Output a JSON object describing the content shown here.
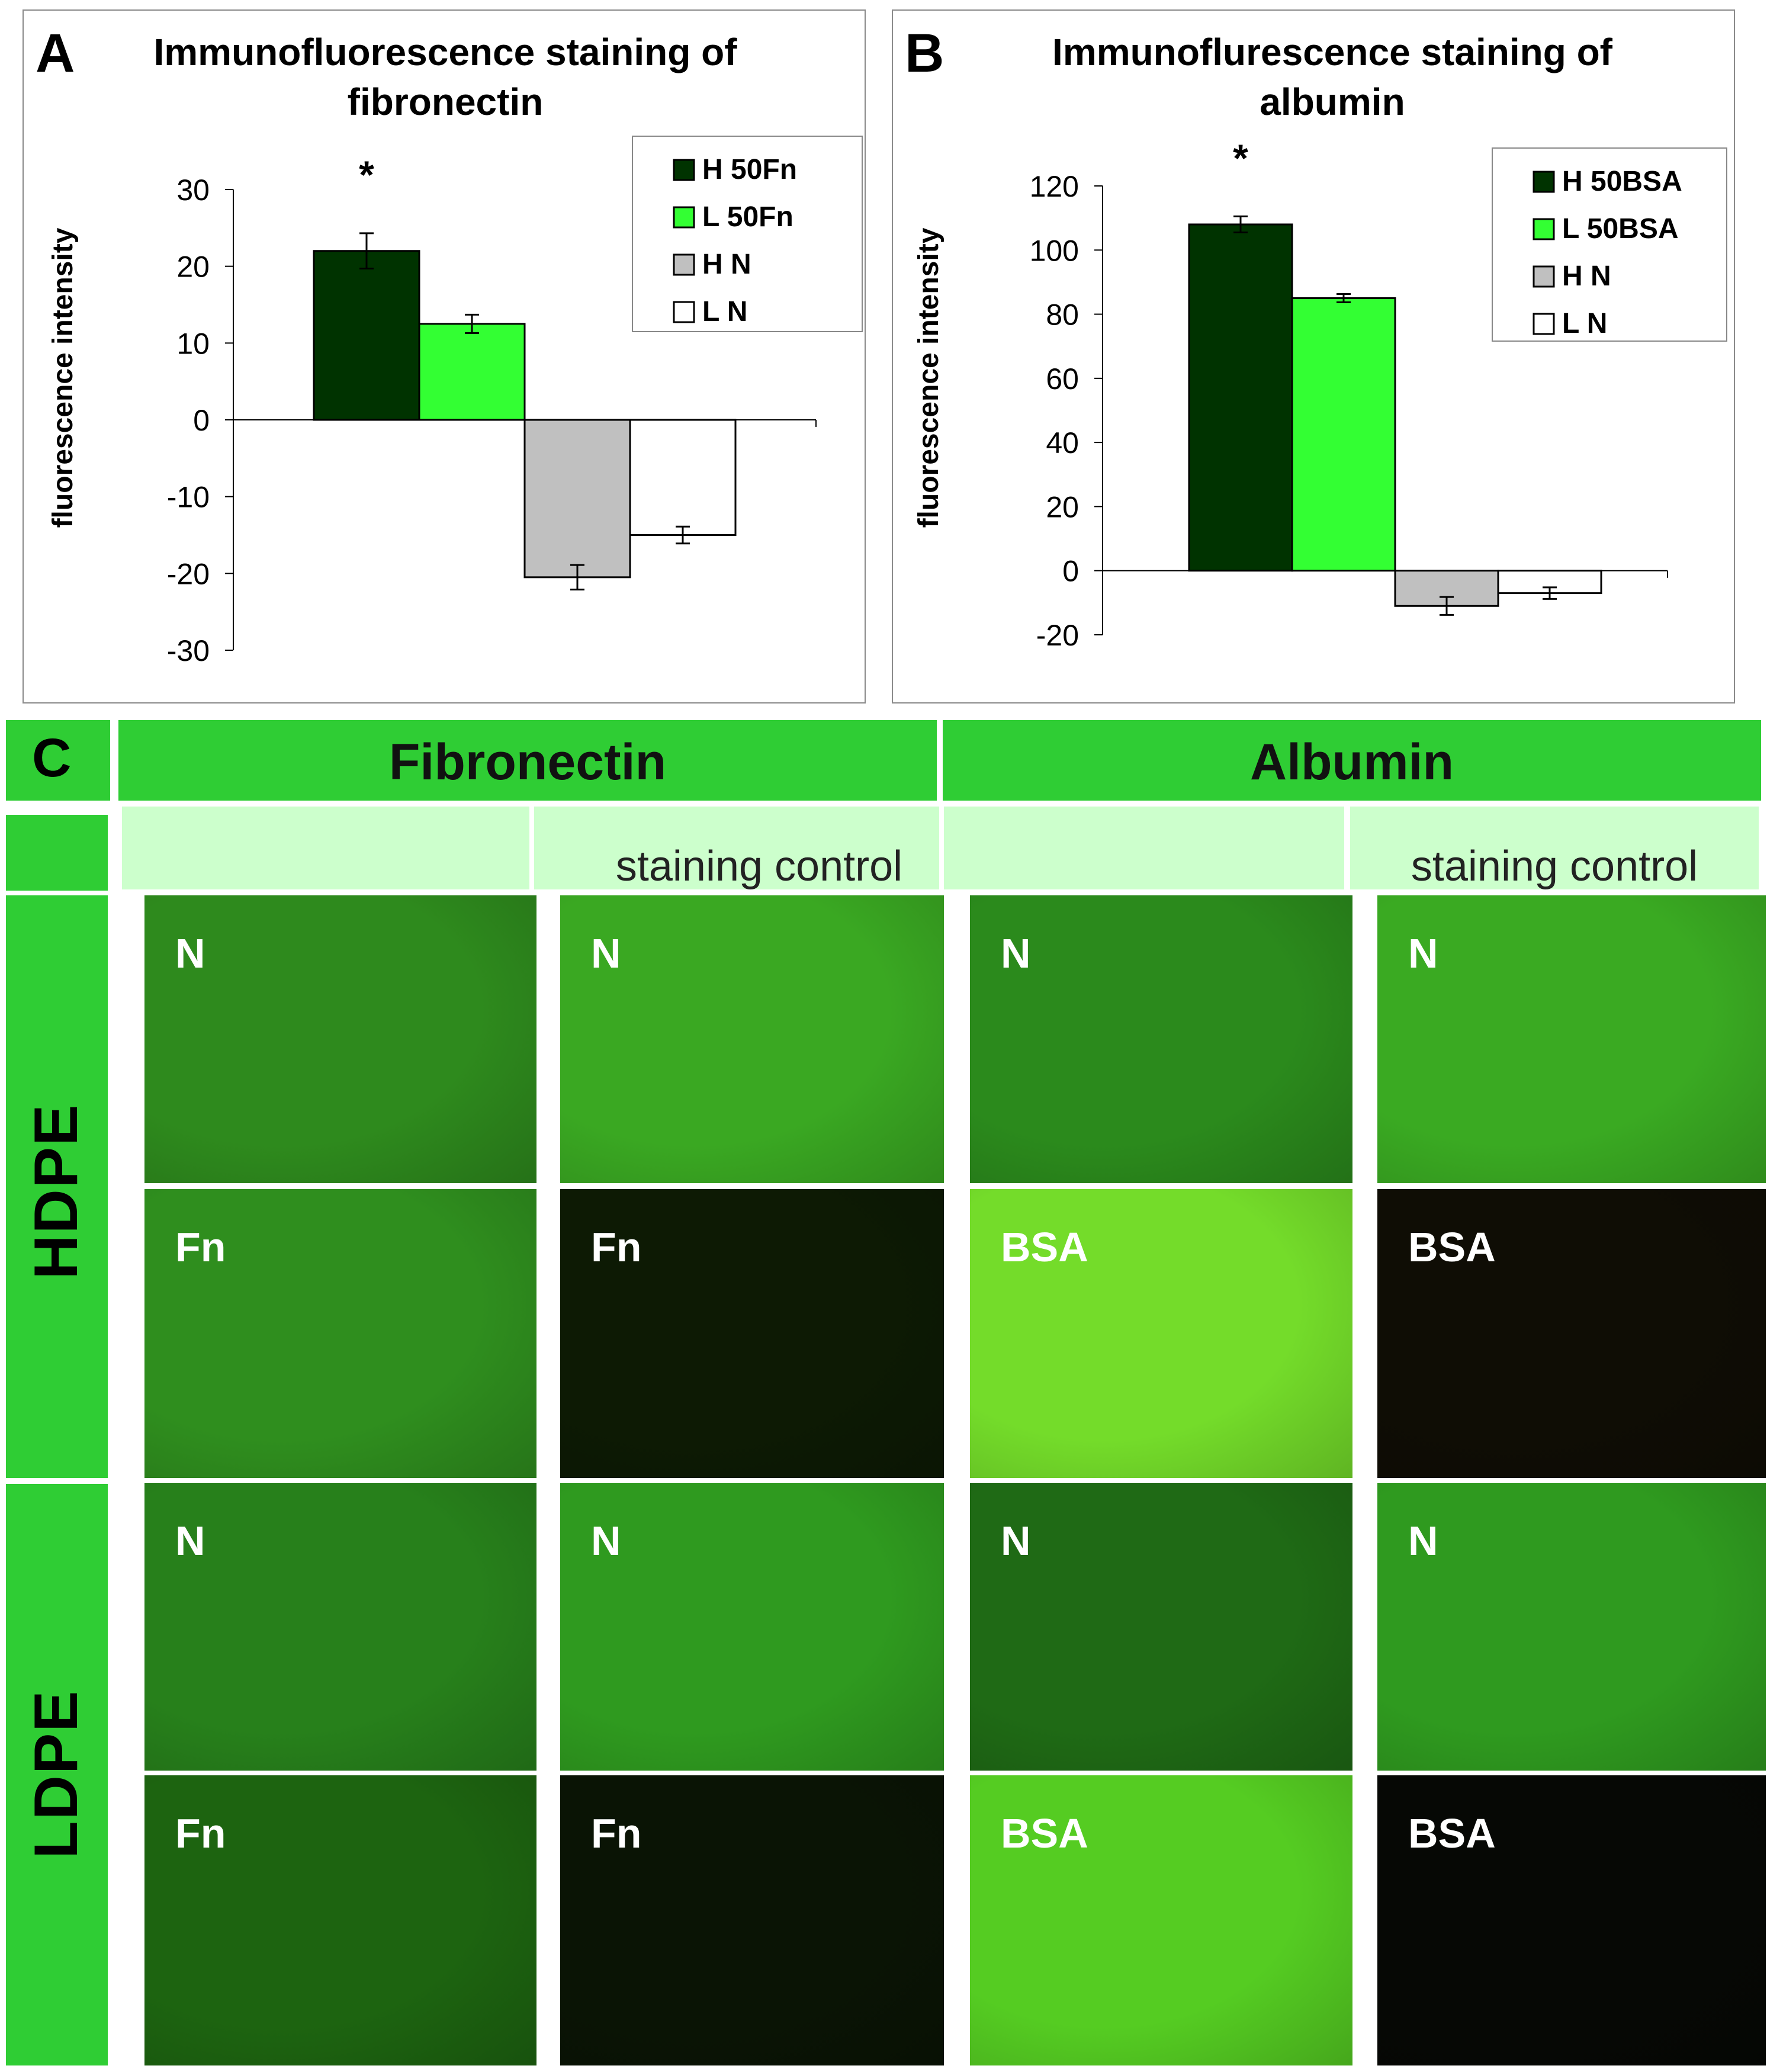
{
  "panelA": {
    "letter": "A",
    "chart_data": {
      "type": "bar",
      "title": "Immunofluorescence staining of fibronectin",
      "title_lines": [
        "Immunofluorescence staining of",
        "fibronectin"
      ],
      "ylabel": "fluorescence intensity",
      "xlabel": "",
      "ylim": [
        -30,
        30
      ],
      "yticks": [
        30,
        20,
        10,
        0,
        -10,
        -20,
        -30
      ],
      "series": [
        {
          "name": "H 50Fn",
          "value": 22,
          "error": 2.3,
          "color": "#003300"
        },
        {
          "name": "L 50Fn",
          "value": 12.5,
          "error": 1.2,
          "color": "#33ff33"
        },
        {
          "name": "H N",
          "value": -20.5,
          "error": 1.6,
          "color": "#c0c0c0"
        },
        {
          "name": "L N",
          "value": -15,
          "error": 1.1,
          "color": "#ffffff"
        }
      ],
      "annotations": [
        "*"
      ],
      "legend": "top-right"
    }
  },
  "panelB": {
    "letter": "B",
    "chart_data": {
      "type": "bar",
      "title": "Immunoflurescence staining of albumin",
      "title_lines": [
        "Immunoflurescence staining of",
        "albumin"
      ],
      "ylabel": "fluorescence intensity",
      "xlabel": "",
      "ylim": [
        -20,
        120
      ],
      "yticks": [
        120,
        100,
        80,
        60,
        40,
        20,
        0,
        -20
      ],
      "series": [
        {
          "name": "H 50BSA",
          "value": 108,
          "error": 2.5,
          "color": "#003300"
        },
        {
          "name": "L 50BSA",
          "value": 85,
          "error": 1.3,
          "color": "#33ff33"
        },
        {
          "name": "H N",
          "value": -11,
          "error": 2.8,
          "color": "#c0c0c0"
        },
        {
          "name": "L N",
          "value": -7,
          "error": 1.8,
          "color": "#ffffff"
        }
      ],
      "annotations": [
        "*"
      ],
      "legend": "top-right"
    }
  },
  "panelC": {
    "letter": "C",
    "headers": [
      "Fibronectin",
      "Albumin"
    ],
    "subheaders": [
      "",
      "staining control",
      "",
      "staining control"
    ],
    "rows": [
      {
        "group": "HDPE",
        "labels": [
          "N",
          "N",
          "N",
          "N"
        ]
      },
      {
        "group": "HDPE",
        "labels": [
          "Fn",
          "Fn",
          "BSA",
          "BSA"
        ]
      },
      {
        "group": "LDPE",
        "labels": [
          "N",
          "N",
          "N",
          "N"
        ]
      },
      {
        "group": "LDPE",
        "labels": [
          "Fn",
          "Fn",
          "BSA",
          "BSA"
        ]
      }
    ],
    "groups": [
      "HDPE",
      "LDPE"
    ],
    "colors": {
      "header": "#2fcd34",
      "subheader": "#ccffcc",
      "tile_colors": [
        [
          "#2e8a1d",
          "#3aa822",
          "#2b8a1c",
          "#3aaa22"
        ],
        [
          "#2f8e1e",
          "#0d1a04",
          "#74dc2a",
          "#0f0d05"
        ],
        [
          "#27801b",
          "#2f9a1f",
          "#1f6a15",
          "#2f9a1f"
        ],
        [
          "#1d6410",
          "#0a1405",
          "#55cc22",
          "#060805"
        ]
      ]
    }
  }
}
